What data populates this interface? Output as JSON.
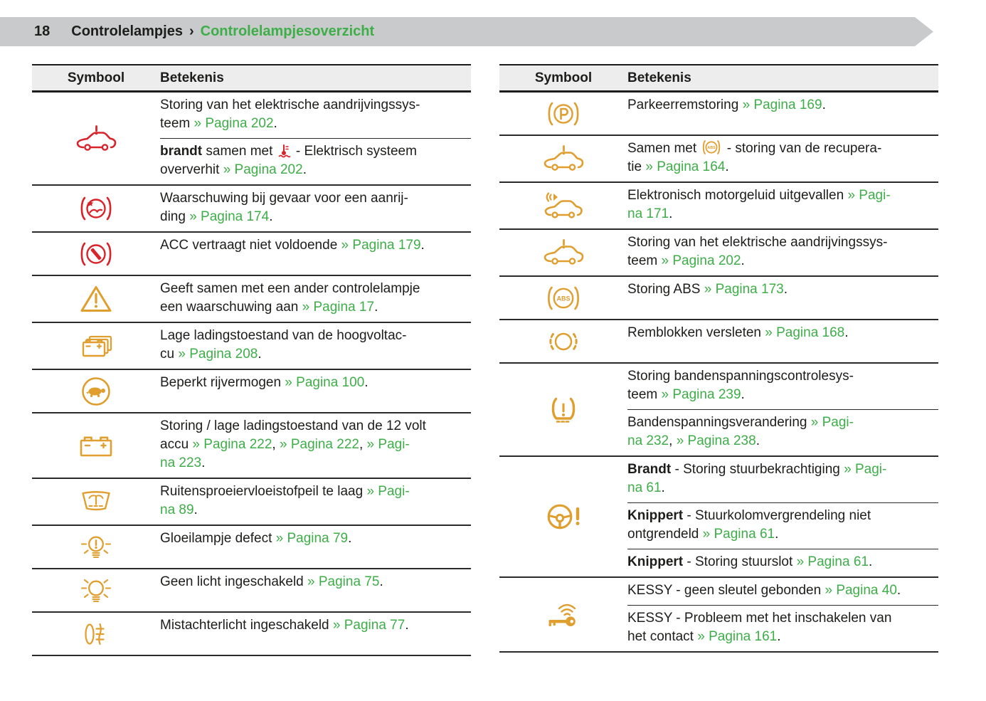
{
  "header": {
    "page_number": "18",
    "chapter": "Controlelampjes",
    "separator": "›",
    "section": "Controlelampjesoverzicht"
  },
  "colors": {
    "red": "#d8232a",
    "amber": "#df9e2e",
    "green": "#3eae48",
    "text": "#1d1d1b",
    "header_bar": "#c9cacb",
    "table_header_bg": "#ededee"
  },
  "table_left": {
    "col_symbol": "Symbool",
    "col_meaning": "Betekenis",
    "rows": [
      {
        "icon": "ev-car-warning-icon",
        "icon_color": "red",
        "entries": [
          {
            "segments": [
              {
                "t": "Storing van het elektrische aandrijvingssys-\nteem "
              },
              {
                "t": "» Pagina 202",
                "link": true
              },
              {
                "t": "."
              }
            ]
          },
          {
            "segments": [
              {
                "t": "brandt",
                "b": true
              },
              {
                "t": " samen met "
              },
              {
                "icon": "coolant-temp-icon",
                "color": "red"
              },
              {
                "t": " - Elektrisch systeem\noververhit "
              },
              {
                "t": "» Pagina 202",
                "link": true
              },
              {
                "t": "."
              }
            ]
          }
        ]
      },
      {
        "icon": "collision-warning-icon",
        "icon_color": "red",
        "entries": [
          {
            "segments": [
              {
                "t": "Waarschuwing bij gevaar voor een aanrij-\nding "
              },
              {
                "t": "» Pagina 174",
                "link": true
              },
              {
                "t": "."
              }
            ]
          }
        ]
      },
      {
        "icon": "acc-warning-icon",
        "icon_color": "red",
        "entries": [
          {
            "segments": [
              {
                "t": "ACC vertraagt niet voldoende "
              },
              {
                "t": "» Pagina 179",
                "link": true
              },
              {
                "t": "."
              }
            ]
          }
        ]
      },
      {
        "icon": "warning-triangle-icon",
        "icon_color": "amber",
        "entries": [
          {
            "segments": [
              {
                "t": "Geeft samen met een ander controlelampje\neen waarschuwing aan "
              },
              {
                "t": "» Pagina 17",
                "link": true
              },
              {
                "t": "."
              }
            ]
          }
        ]
      },
      {
        "icon": "hv-battery-icon",
        "icon_color": "amber",
        "entries": [
          {
            "segments": [
              {
                "t": "Lage ladingstoestand van de hoogvoltac-\ncu "
              },
              {
                "t": "» Pagina 208",
                "link": true
              },
              {
                "t": "."
              }
            ]
          }
        ]
      },
      {
        "icon": "reduced-power-turtle-icon",
        "icon_color": "amber",
        "entries": [
          {
            "segments": [
              {
                "t": "Beperkt rijvermogen "
              },
              {
                "t": "» Pagina 100",
                "link": true
              },
              {
                "t": "."
              }
            ]
          }
        ]
      },
      {
        "icon": "battery-12v-icon",
        "icon_color": "amber",
        "entries": [
          {
            "segments": [
              {
                "t": "Storing / lage ladingstoestand van de 12 volt\naccu "
              },
              {
                "t": "» Pagina 222",
                "link": true
              },
              {
                "t": ", "
              },
              {
                "t": "» Pagina 222",
                "link": true
              },
              {
                "t": ", "
              },
              {
                "t": "» Pagi-\nna 223",
                "link": true
              },
              {
                "t": "."
              }
            ]
          }
        ]
      },
      {
        "icon": "washer-fluid-icon",
        "icon_color": "amber",
        "entries": [
          {
            "segments": [
              {
                "t": "Ruitensproeiervloeistofpeil te laag "
              },
              {
                "t": "» Pagi-\nna 89",
                "link": true
              },
              {
                "t": "."
              }
            ]
          }
        ]
      },
      {
        "icon": "bulb-failure-icon",
        "icon_color": "amber",
        "entries": [
          {
            "segments": [
              {
                "t": "Gloeilampje defect "
              },
              {
                "t": "» Pagina 79",
                "link": true
              },
              {
                "t": "."
              }
            ]
          }
        ]
      },
      {
        "icon": "lights-off-icon",
        "icon_color": "amber",
        "entries": [
          {
            "segments": [
              {
                "t": "Geen licht ingeschakeld "
              },
              {
                "t": "» Pagina 75",
                "link": true
              },
              {
                "t": "."
              }
            ]
          }
        ]
      },
      {
        "icon": "rear-fog-light-icon",
        "icon_color": "amber",
        "entries": [
          {
            "segments": [
              {
                "t": "Mistachterlicht ingeschakeld "
              },
              {
                "t": "» Pagina 77",
                "link": true
              },
              {
                "t": "."
              }
            ]
          }
        ]
      }
    ]
  },
  "table_right": {
    "col_symbol": "Symbool",
    "col_meaning": "Betekenis",
    "rows": [
      {
        "icon": "parking-brake-fault-icon",
        "icon_color": "amber",
        "entries": [
          {
            "segments": [
              {
                "t": "Parkeerremstoring "
              },
              {
                "t": "» Pagina 169",
                "link": true
              },
              {
                "t": "."
              }
            ]
          }
        ]
      },
      {
        "icon": "ev-car-warning-icon",
        "icon_color": "amber",
        "entries": [
          {
            "segments": [
              {
                "t": "Samen met "
              },
              {
                "icon": "abs-small-icon",
                "color": "amber"
              },
              {
                "t": " - storing van de recupera-\ntie "
              },
              {
                "t": "» Pagina 164",
                "link": true
              },
              {
                "t": "."
              }
            ]
          }
        ]
      },
      {
        "icon": "e-sound-icon",
        "icon_color": "amber",
        "entries": [
          {
            "segments": [
              {
                "t": "Elektronisch motorgeluid uitgevallen "
              },
              {
                "t": "» Pagi-\nna 171",
                "link": true
              },
              {
                "t": "."
              }
            ]
          }
        ]
      },
      {
        "icon": "ev-car-warning-icon",
        "icon_color": "amber",
        "entries": [
          {
            "segments": [
              {
                "t": "Storing van het elektrische aandrijvingssys-\nteem "
              },
              {
                "t": "» Pagina 202",
                "link": true
              },
              {
                "t": "."
              }
            ]
          }
        ]
      },
      {
        "icon": "abs-icon",
        "icon_color": "amber",
        "entries": [
          {
            "segments": [
              {
                "t": "Storing ABS "
              },
              {
                "t": "» Pagina 173",
                "link": true
              },
              {
                "t": "."
              }
            ]
          }
        ]
      },
      {
        "icon": "brake-pads-icon",
        "icon_color": "amber",
        "entries": [
          {
            "segments": [
              {
                "t": "Remblokken versleten "
              },
              {
                "t": "» Pagina 168",
                "link": true
              },
              {
                "t": "."
              }
            ]
          }
        ]
      },
      {
        "icon": "tpms-icon",
        "icon_color": "amber",
        "entries": [
          {
            "segments": [
              {
                "t": "Storing bandenspanningscontrolesys-\nteem "
              },
              {
                "t": "» Pagina 239",
                "link": true
              },
              {
                "t": "."
              }
            ]
          },
          {
            "segments": [
              {
                "t": "Bandenspanningsverandering "
              },
              {
                "t": "» Pagi-\nna 232",
                "link": true
              },
              {
                "t": ", "
              },
              {
                "t": "» Pagina 238",
                "link": true
              },
              {
                "t": "."
              }
            ]
          }
        ]
      },
      {
        "icon": "steering-warning-icon",
        "icon_color": "amber",
        "entries": [
          {
            "segments": [
              {
                "t": "Brandt",
                "b": true
              },
              {
                "t": " - Storing stuurbekrachtiging "
              },
              {
                "t": "» Pagi-\nna 61",
                "link": true
              },
              {
                "t": "."
              }
            ]
          },
          {
            "segments": [
              {
                "t": "Knippert",
                "b": true
              },
              {
                "t": " - Stuurkolomvergrendeling niet\nontgrendeld "
              },
              {
                "t": "» Pagina 61",
                "link": true
              },
              {
                "t": "."
              }
            ]
          },
          {
            "segments": [
              {
                "t": "Knippert",
                "b": true
              },
              {
                "t": " - Storing stuurslot "
              },
              {
                "t": "» Pagina 61",
                "link": true
              },
              {
                "t": "."
              }
            ]
          }
        ]
      },
      {
        "icon": "kessy-key-icon",
        "icon_color": "amber",
        "entries": [
          {
            "segments": [
              {
                "t": "KESSY - geen sleutel gebonden "
              },
              {
                "t": "» Pagina 40",
                "link": true
              },
              {
                "t": "."
              }
            ]
          },
          {
            "segments": [
              {
                "t": "KESSY - Probleem met het inschakelen van\nhet contact "
              },
              {
                "t": "» Pagina 161",
                "link": true
              },
              {
                "t": "."
              }
            ]
          }
        ]
      }
    ]
  }
}
